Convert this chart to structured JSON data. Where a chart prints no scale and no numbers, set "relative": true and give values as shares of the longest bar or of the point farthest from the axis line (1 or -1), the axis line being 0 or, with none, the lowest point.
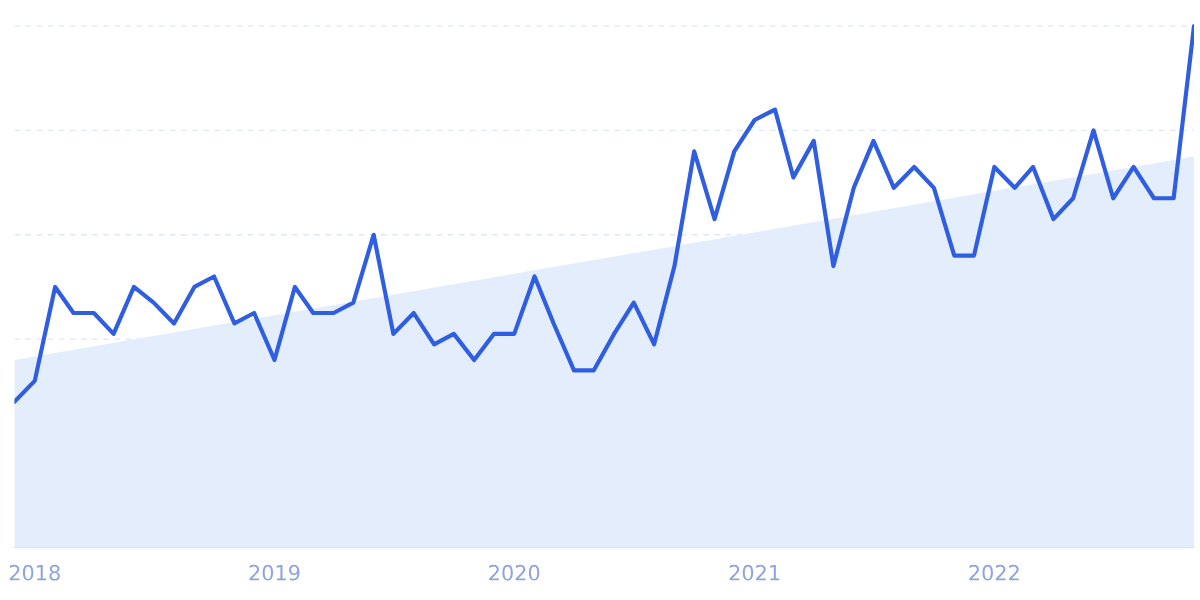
{
  "chart_data": {
    "type": "line",
    "relative": true,
    "grid": "y",
    "legend": false,
    "marker": "none",
    "line_style": "solid",
    "x": [
      "2017-12",
      "2018-01",
      "2018-02",
      "2018-03",
      "2018-04",
      "2018-05",
      "2018-06",
      "2018-07",
      "2018-08",
      "2018-09",
      "2018-10",
      "2018-11",
      "2018-12",
      "2019-01",
      "2019-02",
      "2019-03",
      "2019-04",
      "2019-05",
      "2019-06",
      "2019-07",
      "2019-08",
      "2019-09",
      "2019-10",
      "2019-11",
      "2019-12",
      "2020-01",
      "2020-02",
      "2020-03",
      "2020-04",
      "2020-05",
      "2020-06",
      "2020-07",
      "2020-08",
      "2020-09",
      "2020-10",
      "2020-11",
      "2020-12",
      "2021-01",
      "2021-02",
      "2021-03",
      "2021-04",
      "2021-05",
      "2021-06",
      "2021-07",
      "2021-08",
      "2021-09",
      "2021-10",
      "2021-11",
      "2021-12",
      "2022-01",
      "2022-02",
      "2022-03",
      "2022-04",
      "2022-05",
      "2022-06",
      "2022-07",
      "2022-08",
      "2022-09",
      "2022-10",
      "2022-11"
    ],
    "xlim": [
      "2017-12",
      "2022-11"
    ],
    "xticks": [
      "2018",
      "2019",
      "2020",
      "2021",
      "2022"
    ],
    "series": [
      {
        "type": "area",
        "color": "#e3edfb",
        "x": [
          "2017-12",
          "2022-11"
        ],
        "values": [
          0.36,
          0.75
        ]
      },
      {
        "color": "#2f5fe0",
        "values": [
          0.28,
          0.32,
          0.5,
          0.45,
          0.45,
          0.41,
          0.5,
          0.47,
          0.43,
          0.5,
          0.52,
          0.43,
          0.45,
          0.36,
          0.5,
          0.45,
          0.45,
          0.47,
          0.6,
          0.41,
          0.45,
          0.39,
          0.41,
          0.36,
          0.41,
          0.41,
          0.52,
          0.43,
          0.34,
          0.34,
          0.41,
          0.47,
          0.39,
          0.54,
          0.76,
          0.63,
          0.76,
          0.82,
          0.84,
          0.71,
          0.78,
          0.54,
          0.69,
          0.78,
          0.69,
          0.73,
          0.69,
          0.56,
          0.56,
          0.73,
          0.69,
          0.73,
          0.63,
          0.67,
          0.8,
          0.67,
          0.73,
          0.67,
          0.67,
          1
        ]
      }
    ]
  }
}
